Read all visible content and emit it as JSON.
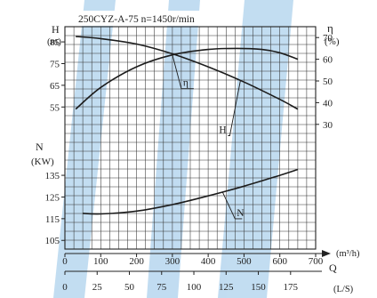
{
  "chart_data": {
    "type": "line",
    "title": "250CYZ-A-75  n=1450r/min",
    "colors": {
      "axis": "#222222",
      "grid": "#333333",
      "watermark": "#8fc1e6",
      "background": "#ffffff"
    },
    "left_axis_h": {
      "label": "H",
      "unit": "(m)",
      "ticks": [
        55,
        65,
        75,
        85
      ],
      "range": [
        42,
        92
      ]
    },
    "left_axis_n": {
      "label": "N",
      "unit": "(KW)",
      "ticks": [
        105,
        115,
        125,
        135
      ],
      "range": [
        101,
        142
      ]
    },
    "right_axis_eta": {
      "label": "η",
      "unit": "(%)",
      "ticks": [
        30,
        40,
        50,
        60,
        70
      ],
      "range": [
        25,
        75
      ]
    },
    "x_axis_q_m3h": {
      "unit": "(m³/h)",
      "ticks": [
        0,
        100,
        200,
        300,
        400,
        500,
        600,
        700
      ],
      "range": [
        0,
        700
      ]
    },
    "x_axis_q_ls": {
      "label": "Q",
      "unit": "(L/S)",
      "ticks": [
        0,
        25,
        50,
        75,
        100,
        125,
        150,
        175
      ]
    },
    "series": [
      {
        "name": "H",
        "axis": "H",
        "x": [
          30,
          100,
          200,
          300,
          400,
          500,
          600,
          650
        ],
        "y": [
          87.5,
          86.5,
          84.0,
          79.5,
          73.5,
          66.5,
          58.5,
          54.0
        ]
      },
      {
        "name": "η",
        "axis": "eta",
        "x": [
          30,
          100,
          200,
          300,
          400,
          480,
          550,
          600,
          650
        ],
        "y": [
          37,
          47,
          56.5,
          62,
          64.5,
          65,
          64.5,
          63,
          60
        ]
      },
      {
        "name": "N",
        "axis": "N",
        "x": [
          50,
          100,
          200,
          300,
          400,
          500,
          600,
          650
        ],
        "y": [
          117.5,
          117.2,
          118.5,
          121.5,
          125.5,
          130,
          135,
          137.7
        ]
      }
    ],
    "annotations": [
      {
        "text": "η",
        "x": 300,
        "series": "η"
      },
      {
        "text": "H",
        "x": 490,
        "series": "H"
      },
      {
        "text": "N",
        "x": 440,
        "series": "N"
      }
    ]
  }
}
